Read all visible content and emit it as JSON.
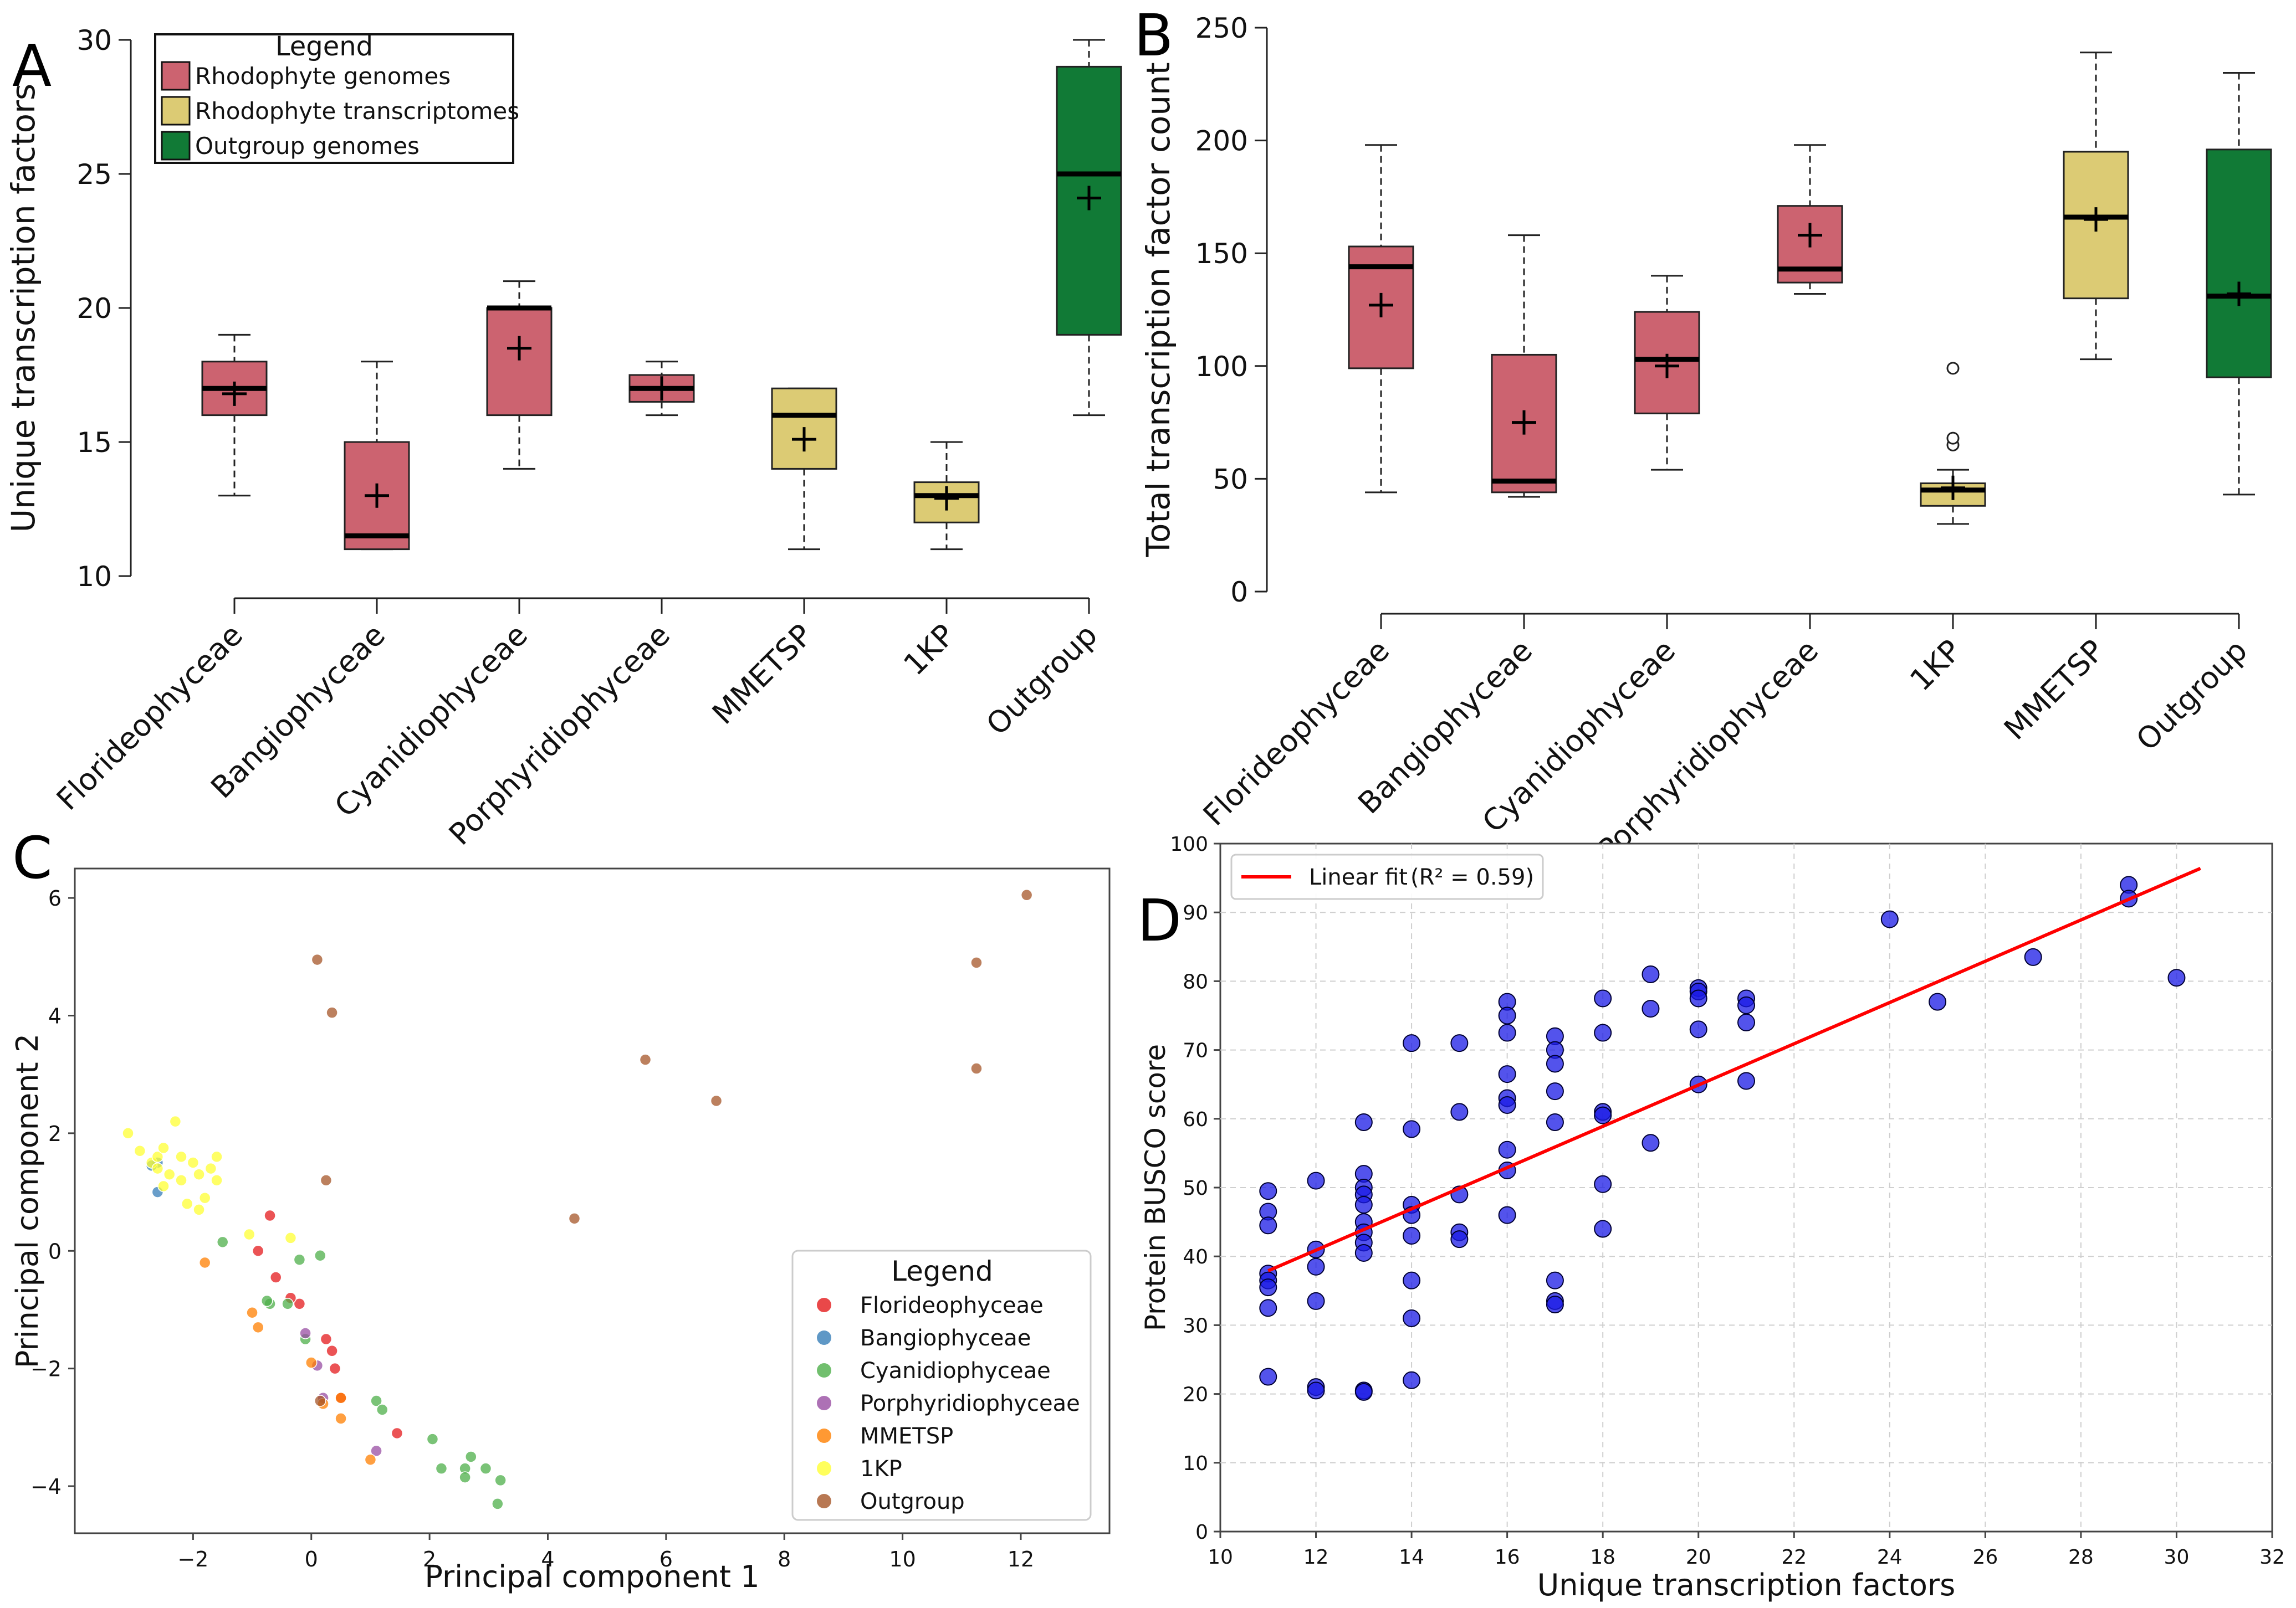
{
  "chart_data": [
    {
      "panel": "A",
      "type": "box",
      "ylabel": "Unique transcription factors",
      "ylim": [
        10,
        30
      ],
      "yticks": [
        10,
        15,
        20,
        25,
        30
      ],
      "categories": [
        "Florideophyceae",
        "Bangiophyceae",
        "Cyanidiophyceae",
        "Porphyridiophyceae",
        "MMETSP",
        "1KP",
        "Outgroup"
      ],
      "boxes": [
        {
          "min": 13,
          "q1": 16,
          "median": 17,
          "q3": 18,
          "max": 19,
          "mean": 16.8,
          "group": "genomes"
        },
        {
          "min": 11,
          "q1": 11,
          "median": 11.5,
          "q3": 15,
          "max": 18,
          "mean": 13,
          "group": "genomes"
        },
        {
          "min": 14,
          "q1": 16,
          "median": 20,
          "q3": 20,
          "max": 21,
          "mean": 18.5,
          "group": "genomes"
        },
        {
          "min": 16,
          "q1": 16.5,
          "median": 17,
          "q3": 17.5,
          "max": 18,
          "mean": 17,
          "group": "genomes"
        },
        {
          "min": 11,
          "q1": 14,
          "median": 16,
          "q3": 17,
          "max": 17,
          "mean": 15.1,
          "group": "transcriptomes"
        },
        {
          "min": 11,
          "q1": 12,
          "median": 13,
          "q3": 13.5,
          "max": 15,
          "mean": 12.9,
          "group": "transcriptomes"
        },
        {
          "min": 16,
          "q1": 19,
          "median": 25,
          "q3": 29,
          "max": 30,
          "mean": 24.1,
          "group": "outgroup"
        }
      ],
      "legend": {
        "title": "Legend",
        "entries": [
          {
            "label": "Rhodophyte genomes",
            "color": "#CC6370"
          },
          {
            "label": "Rhodophyte transcriptomes",
            "color": "#DCCB74"
          },
          {
            "label": "Outgroup genomes",
            "color": "#117A36"
          }
        ]
      }
    },
    {
      "panel": "B",
      "type": "box",
      "ylabel": "Total transcription factor count",
      "ylim": [
        0,
        250
      ],
      "yticks": [
        0,
        50,
        100,
        150,
        200,
        250
      ],
      "categories": [
        "Florideophyceae",
        "Bangiophyceae",
        "Cyanidiophyceae",
        "Porphyridiophyceae",
        "1KP",
        "MMETSP",
        "Outgroup"
      ],
      "boxes": [
        {
          "min": 44,
          "q1": 99,
          "median": 144,
          "q3": 153,
          "max": 198,
          "mean": 127,
          "group": "genomes"
        },
        {
          "min": 42,
          "q1": 44,
          "median": 49,
          "q3": 105,
          "max": 158,
          "mean": 75,
          "group": "genomes"
        },
        {
          "min": 54,
          "q1": 79,
          "median": 103,
          "q3": 124,
          "max": 140,
          "mean": 100,
          "group": "genomes"
        },
        {
          "min": 132,
          "q1": 137,
          "median": 143,
          "q3": 171,
          "max": 198,
          "mean": 158,
          "group": "genomes"
        },
        {
          "min": 30,
          "q1": 38,
          "median": 45,
          "q3": 48,
          "max": 54,
          "mean": 46,
          "group": "transcriptomes",
          "outliers": [
            65,
            68,
            99
          ]
        },
        {
          "min": 103,
          "q1": 130,
          "median": 166,
          "q3": 195,
          "max": 239,
          "mean": 165,
          "group": "transcriptomes"
        },
        {
          "min": 43,
          "q1": 95,
          "median": 131,
          "q3": 196,
          "max": 230,
          "mean": 132,
          "group": "outgroup"
        }
      ]
    },
    {
      "panel": "C",
      "type": "scatter",
      "xlabel": "Principal component 1",
      "ylabel": "Principal component 2",
      "xlim": [
        -4,
        13.5
      ],
      "ylim": [
        -4.8,
        6.5
      ],
      "xticks": [
        -2,
        0,
        2,
        4,
        6,
        8,
        10,
        12
      ],
      "yticks": [
        -4,
        -2,
        0,
        2,
        4,
        6
      ],
      "legend": {
        "title": "Legend",
        "entries": [
          {
            "label": "Florideophyceae",
            "color": "#E41A1C"
          },
          {
            "label": "Bangiophyceae",
            "color": "#377EB8"
          },
          {
            "label": "Cyanidiophyceae",
            "color": "#4DAF4A"
          },
          {
            "label": "Porphyridiophyceae",
            "color": "#984EA3"
          },
          {
            "label": "MMETSP",
            "color": "#FF7F00"
          },
          {
            "label": "1KP",
            "color": "#FFFF33"
          },
          {
            "label": "Outgroup",
            "color": "#A65628"
          }
        ]
      },
      "series": [
        {
          "name": "Florideophyceae",
          "points": [
            [
              -0.7,
              0.6
            ],
            [
              -0.9,
              0.0
            ],
            [
              -0.6,
              -0.45
            ],
            [
              -0.2,
              -0.9
            ],
            [
              0.25,
              -1.5
            ],
            [
              0.35,
              -1.7
            ],
            [
              0.4,
              -2.0
            ],
            [
              0.5,
              -2.5
            ],
            [
              1.45,
              -3.1
            ],
            [
              -0.35,
              -0.8
            ]
          ]
        },
        {
          "name": "Bangiophyceae",
          "points": [
            [
              -2.6,
              1.5
            ],
            [
              -2.6,
              1.0
            ],
            [
              -2.7,
              1.45
            ]
          ]
        },
        {
          "name": "Cyanidiophyceae",
          "points": [
            [
              -1.5,
              0.15
            ],
            [
              -0.7,
              -0.9
            ],
            [
              -0.4,
              -0.9
            ],
            [
              -0.2,
              -0.15
            ],
            [
              -0.1,
              -1.5
            ],
            [
              0.15,
              -0.08
            ],
            [
              1.1,
              -2.55
            ],
            [
              1.2,
              -2.7
            ],
            [
              2.05,
              -3.2
            ],
            [
              2.2,
              -3.7
            ],
            [
              2.6,
              -3.7
            ],
            [
              2.7,
              -3.5
            ],
            [
              2.6,
              -3.85
            ],
            [
              2.95,
              -3.7
            ],
            [
              3.2,
              -3.9
            ],
            [
              3.15,
              -4.3
            ],
            [
              -0.75,
              -0.85
            ]
          ]
        },
        {
          "name": "Porphyridiophyceae",
          "points": [
            [
              -0.1,
              -1.4
            ],
            [
              0.1,
              -1.95
            ],
            [
              1.1,
              -3.4
            ],
            [
              0.2,
              -2.5
            ]
          ]
        },
        {
          "name": "MMETSP",
          "points": [
            [
              -1.8,
              -0.2
            ],
            [
              -1.0,
              -1.05
            ],
            [
              -0.9,
              -1.3
            ],
            [
              0.0,
              -1.9
            ],
            [
              0.2,
              -2.6
            ],
            [
              0.5,
              -2.5
            ],
            [
              0.5,
              -2.85
            ],
            [
              1.0,
              -3.55
            ]
          ]
        },
        {
          "name": "1KP",
          "points": [
            [
              -3.1,
              2.0
            ],
            [
              -2.9,
              1.7
            ],
            [
              -2.7,
              1.5
            ],
            [
              -2.6,
              1.6
            ],
            [
              -2.5,
              1.75
            ],
            [
              -2.4,
              1.3
            ],
            [
              -2.2,
              1.2
            ],
            [
              -2.3,
              2.2
            ],
            [
              -2.2,
              1.6
            ],
            [
              -2.0,
              1.5
            ],
            [
              -1.9,
              1.3
            ],
            [
              -1.7,
              1.4
            ],
            [
              -1.6,
              1.6
            ],
            [
              -1.6,
              1.2
            ],
            [
              -2.1,
              0.8
            ],
            [
              -1.8,
              0.9
            ],
            [
              -1.9,
              0.7
            ],
            [
              -2.5,
              1.1
            ],
            [
              -2.6,
              1.4
            ],
            [
              -1.05,
              0.28
            ],
            [
              -0.35,
              0.22
            ]
          ]
        },
        {
          "name": "Outgroup",
          "points": [
            [
              0.1,
              4.95
            ],
            [
              0.35,
              4.05
            ],
            [
              0.25,
              1.2
            ],
            [
              0.15,
              -2.55
            ],
            [
              4.45,
              0.55
            ],
            [
              5.65,
              3.25
            ],
            [
              6.85,
              2.55
            ],
            [
              11.25,
              4.9
            ],
            [
              11.25,
              3.1
            ],
            [
              12.1,
              6.05
            ]
          ]
        }
      ]
    },
    {
      "panel": "D",
      "type": "scatter",
      "xlabel": "Unique transcription factors",
      "ylabel": "Protein BUSCO score",
      "xlim": [
        10,
        32
      ],
      "ylim": [
        0,
        100
      ],
      "xticks": [
        10,
        12,
        14,
        16,
        18,
        20,
        22,
        24,
        26,
        28,
        30,
        32
      ],
      "yticks": [
        0,
        10,
        20,
        30,
        40,
        50,
        60,
        70,
        80,
        90,
        100
      ],
      "grid": true,
      "fit": {
        "label": "Linear fit",
        "r2_label": "(R² = 0.59)",
        "intercept": 4.9,
        "slope": 3.0,
        "x_start": 11,
        "x_end": 30.5,
        "color": "#FF0000"
      },
      "points_color": "#1A1AE6",
      "points": [
        [
          11,
          49.5
        ],
        [
          11,
          46.5
        ],
        [
          11,
          44.5
        ],
        [
          11,
          37.5
        ],
        [
          11,
          36.5
        ],
        [
          11,
          35.5
        ],
        [
          11,
          32.5
        ],
        [
          11,
          22.5
        ],
        [
          12,
          51
        ],
        [
          12,
          41
        ],
        [
          12,
          38.5
        ],
        [
          12,
          33.5
        ],
        [
          12,
          21
        ],
        [
          12,
          20.5
        ],
        [
          13,
          59.5
        ],
        [
          13,
          52
        ],
        [
          13,
          50
        ],
        [
          13,
          49
        ],
        [
          13,
          47.5
        ],
        [
          13,
          45
        ],
        [
          13,
          43.5
        ],
        [
          13,
          42
        ],
        [
          13,
          40.5
        ],
        [
          13,
          20.5
        ],
        [
          13,
          20.3
        ],
        [
          14,
          71
        ],
        [
          14,
          58.5
        ],
        [
          14,
          47.5
        ],
        [
          14,
          46
        ],
        [
          14,
          43
        ],
        [
          14,
          36.5
        ],
        [
          14,
          31
        ],
        [
          14,
          22
        ],
        [
          15,
          71
        ],
        [
          15,
          61
        ],
        [
          15,
          49
        ],
        [
          15,
          43.5
        ],
        [
          15,
          42.5
        ],
        [
          16,
          77
        ],
        [
          16,
          75
        ],
        [
          16,
          72.5
        ],
        [
          16,
          66.5
        ],
        [
          16,
          63
        ],
        [
          16,
          62
        ],
        [
          16,
          55.5
        ],
        [
          16,
          52.5
        ],
        [
          16,
          46
        ],
        [
          17,
          72
        ],
        [
          17,
          70
        ],
        [
          17,
          68
        ],
        [
          17,
          64
        ],
        [
          17,
          59.5
        ],
        [
          17,
          36.5
        ],
        [
          17,
          33.5
        ],
        [
          17,
          33
        ],
        [
          18,
          77.5
        ],
        [
          18,
          72.5
        ],
        [
          18,
          61
        ],
        [
          18,
          60.5
        ],
        [
          18,
          50.5
        ],
        [
          18,
          44
        ],
        [
          19,
          81
        ],
        [
          19,
          76
        ],
        [
          19,
          56.5
        ],
        [
          20,
          79
        ],
        [
          20,
          78.5
        ],
        [
          20,
          77.5
        ],
        [
          20,
          73
        ],
        [
          20,
          65
        ],
        [
          21,
          77.5
        ],
        [
          21,
          76.5
        ],
        [
          21,
          74
        ],
        [
          21,
          65.5
        ],
        [
          24,
          89
        ],
        [
          25,
          77
        ],
        [
          27,
          83.5
        ],
        [
          29,
          94
        ],
        [
          29,
          92
        ],
        [
          30,
          80.5
        ]
      ]
    }
  ],
  "panels": {
    "a": "A",
    "b": "B",
    "c": "C",
    "d": "D"
  },
  "mean_marker": "+"
}
